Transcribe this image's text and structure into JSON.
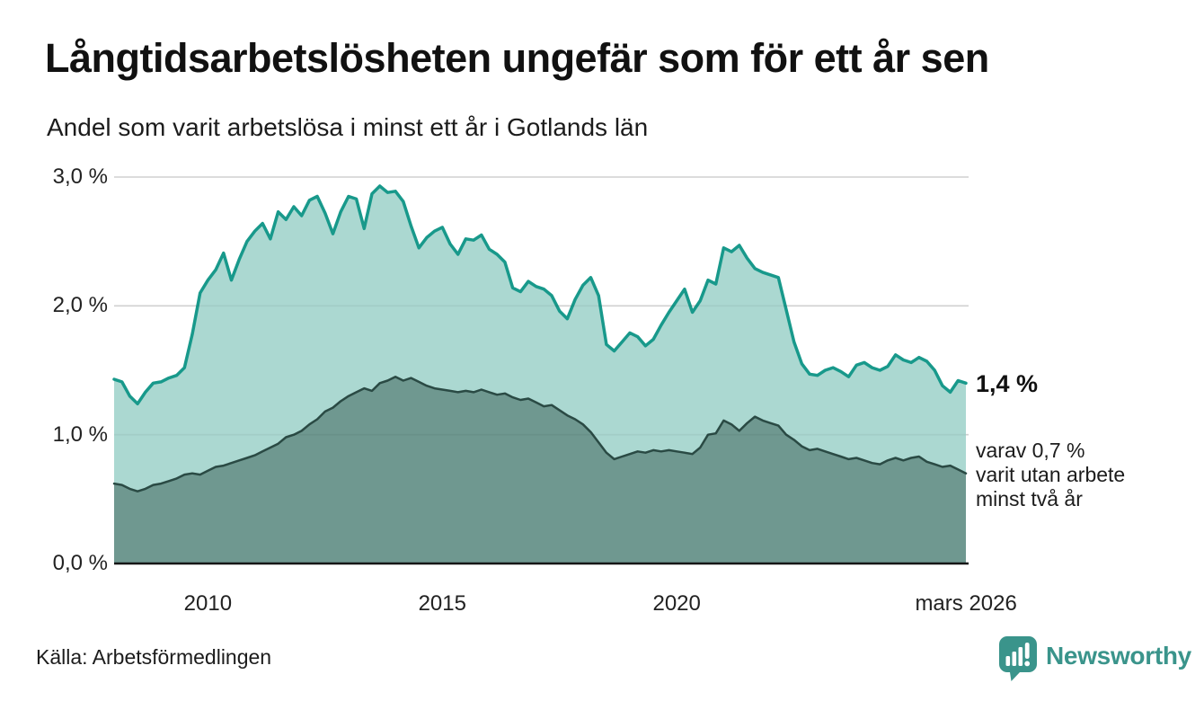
{
  "header": {
    "title": "Långtidsarbetslösheten ungefär som för ett år sen",
    "subtitle": "Andel som varit arbetslösa i minst ett år i Gotlands län"
  },
  "chart_data": {
    "type": "area",
    "title": "Långtidsarbetslösheten ungefär som för ett år sen",
    "subtitle": "Andel som varit arbetslösa i minst ett år i Gotlands län",
    "unit": "%",
    "ylim": [
      0,
      3
    ],
    "grid": "horizontal",
    "legend": "none",
    "x_start_year": 2008.0,
    "x_step_years": 0.16667,
    "x_ticks": [
      {
        "label": "2010",
        "year": 2010.0
      },
      {
        "label": "2015",
        "year": 2015.0
      },
      {
        "label": "2020",
        "year": 2020.0
      },
      {
        "label": "mars 2026",
        "year": 2026.17
      }
    ],
    "y_ticks": [
      {
        "label": "0,0 %",
        "value": 0
      },
      {
        "label": "1,0 %",
        "value": 1
      },
      {
        "label": "2,0 %",
        "value": 2
      },
      {
        "label": "3,0 %",
        "value": 3
      }
    ],
    "series": [
      {
        "name": "arbetslösa minst ett år",
        "line_color": "#18998b",
        "fill_color": "#abd8d1",
        "line_width": 3.5,
        "values_pct": [
          1.43,
          1.41,
          1.3,
          1.24,
          1.33,
          1.4,
          1.41,
          1.44,
          1.46,
          1.52,
          1.78,
          2.1,
          2.2,
          2.28,
          2.41,
          2.2,
          2.36,
          2.5,
          2.58,
          2.64,
          2.52,
          2.73,
          2.67,
          2.77,
          2.7,
          2.82,
          2.85,
          2.72,
          2.56,
          2.73,
          2.85,
          2.83,
          2.6,
          2.87,
          2.93,
          2.88,
          2.89,
          2.81,
          2.62,
          2.45,
          2.53,
          2.58,
          2.61,
          2.48,
          2.4,
          2.52,
          2.51,
          2.55,
          2.44,
          2.4,
          2.34,
          2.14,
          2.11,
          2.19,
          2.15,
          2.13,
          2.08,
          1.96,
          1.9,
          2.05,
          2.16,
          2.22,
          2.08,
          1.7,
          1.65,
          1.72,
          1.79,
          1.76,
          1.69,
          1.74,
          1.85,
          1.95,
          2.04,
          2.13,
          1.95,
          2.04,
          2.2,
          2.17,
          2.45,
          2.42,
          2.47,
          2.37,
          2.29,
          2.26,
          2.24,
          2.22,
          1.97,
          1.72,
          1.55,
          1.47,
          1.46,
          1.5,
          1.52,
          1.49,
          1.45,
          1.54,
          1.56,
          1.52,
          1.5,
          1.53,
          1.62,
          1.58,
          1.56,
          1.6,
          1.57,
          1.5,
          1.38,
          1.33,
          1.42,
          1.4
        ]
      },
      {
        "name": "varav arbetslösa minst två år",
        "line_color": "#2a4a44",
        "fill_color": "#6f9890",
        "line_width": 2.5,
        "values_pct": [
          0.62,
          0.61,
          0.58,
          0.56,
          0.58,
          0.61,
          0.62,
          0.64,
          0.66,
          0.69,
          0.7,
          0.69,
          0.72,
          0.75,
          0.76,
          0.78,
          0.8,
          0.82,
          0.84,
          0.87,
          0.9,
          0.93,
          0.98,
          1.0,
          1.03,
          1.08,
          1.12,
          1.18,
          1.21,
          1.26,
          1.3,
          1.33,
          1.36,
          1.34,
          1.4,
          1.42,
          1.45,
          1.42,
          1.44,
          1.41,
          1.38,
          1.36,
          1.35,
          1.34,
          1.33,
          1.34,
          1.33,
          1.35,
          1.33,
          1.31,
          1.32,
          1.29,
          1.27,
          1.28,
          1.25,
          1.22,
          1.23,
          1.19,
          1.15,
          1.12,
          1.08,
          1.02,
          0.94,
          0.86,
          0.81,
          0.83,
          0.85,
          0.87,
          0.86,
          0.88,
          0.87,
          0.88,
          0.87,
          0.86,
          0.85,
          0.9,
          1.0,
          1.01,
          1.11,
          1.08,
          1.03,
          1.09,
          1.14,
          1.11,
          1.09,
          1.07,
          1.0,
          0.96,
          0.91,
          0.88,
          0.89,
          0.87,
          0.85,
          0.83,
          0.81,
          0.82,
          0.8,
          0.78,
          0.77,
          0.8,
          0.82,
          0.8,
          0.82,
          0.83,
          0.79,
          0.77,
          0.75,
          0.76,
          0.73,
          0.7
        ]
      }
    ],
    "annotations": {
      "latest_value": "1,4 %",
      "secondary_lines": [
        "varav 0,7 %",
        "varit utan arbete",
        "minst två år"
      ]
    }
  },
  "colors": {
    "background": "#ffffff",
    "grid": "#dcdcdc",
    "baseline": "#161616",
    "axis_text": "#222222",
    "accent_teal": "#18998b",
    "logo_teal": "#3a948b"
  },
  "footer": {
    "source": "Källa: Arbetsförmedlingen",
    "logo_text": "Newsworthy"
  }
}
